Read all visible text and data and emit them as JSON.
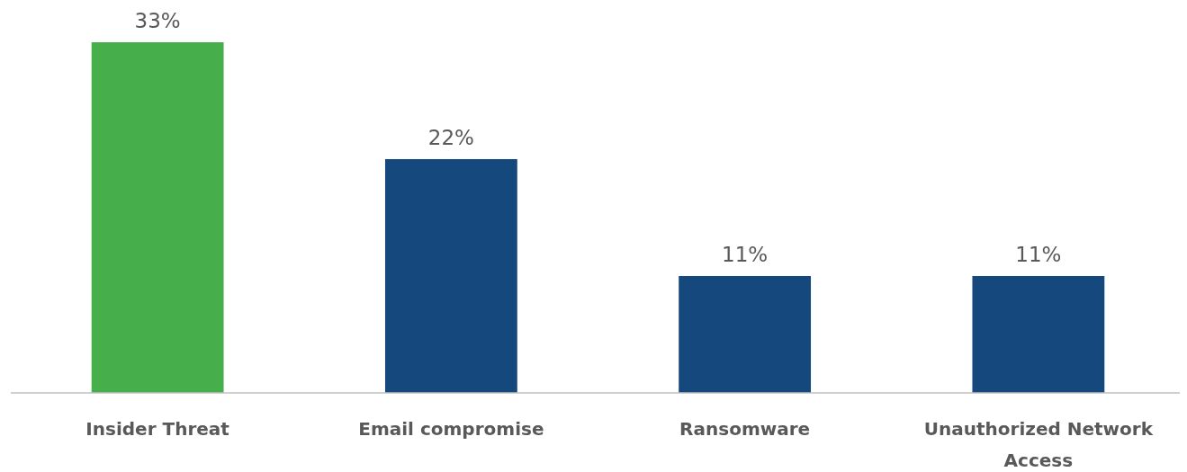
{
  "chart_data": {
    "type": "bar",
    "categories": [
      "Insider Threat",
      "Email compromise",
      "Ransomware",
      "Unauthorized Network Access"
    ],
    "values": [
      33,
      22,
      11,
      11
    ],
    "colors": [
      "#46ae4a",
      "#15487c",
      "#15487c",
      "#15487c"
    ],
    "value_labels": [
      "33%",
      "22%",
      "11%",
      "11%"
    ]
  }
}
